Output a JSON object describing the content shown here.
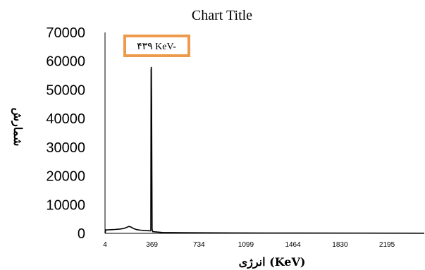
{
  "chart_data": {
    "type": "line",
    "title": "Chart Title",
    "xlabel": "انرژی (KeV)",
    "ylabel": "شمارش",
    "x_ticks": [
      "4",
      "369",
      "734",
      "1099",
      "1464",
      "1830",
      "2195"
    ],
    "y_ticks": [
      "0",
      "10000",
      "20000",
      "30000",
      "40000",
      "50000",
      "60000",
      "70000"
    ],
    "xlim": [
      4,
      2485
    ],
    "ylim": [
      0,
      70000
    ],
    "grid": false,
    "annotation": {
      "text": "۴۳۹ KeV-",
      "border_color": "#ED9A4C"
    },
    "series": [
      {
        "color": "#000000",
        "points": [
          [
            4,
            0
          ],
          [
            10,
            1200
          ],
          [
            40,
            1250
          ],
          [
            80,
            1350
          ],
          [
            120,
            1500
          ],
          [
            150,
            1700
          ],
          [
            175,
            2100
          ],
          [
            190,
            2400
          ],
          [
            205,
            2200
          ],
          [
            225,
            1700
          ],
          [
            250,
            1300
          ],
          [
            280,
            1100
          ],
          [
            320,
            950
          ],
          [
            345,
            900
          ],
          [
            355,
            850
          ],
          [
            360,
            900
          ],
          [
            362,
            57000
          ],
          [
            364,
            58000
          ],
          [
            366,
            45000
          ],
          [
            370,
            1500
          ],
          [
            375,
            600
          ],
          [
            450,
            300
          ],
          [
            700,
            200
          ],
          [
            1000,
            150
          ],
          [
            1500,
            100
          ],
          [
            2000,
            80
          ],
          [
            2485,
            60
          ]
        ]
      }
    ]
  }
}
